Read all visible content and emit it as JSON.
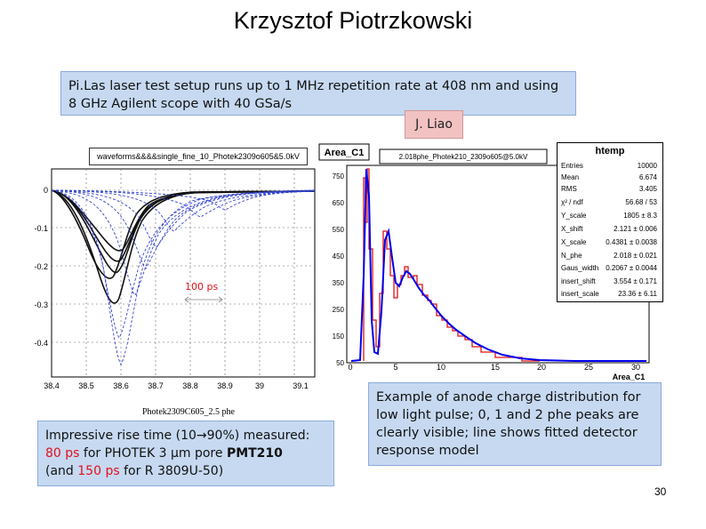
{
  "title": "Krzysztof Piotrzkowski",
  "top_callout": {
    "line1": "Pi.Las laser test setup runs up to 1 MHz repetition rate at 408 nm and using",
    "line2": "8 GHz Agilent scope with 40 GSa/s"
  },
  "author": "J. Liao",
  "scope": {
    "file_label": "waveforms&&&&single_fine_10_Photek2309o605&5.0kV",
    "caption": "Photek2309C605_2.5 phe",
    "pulse_label": "100 ps",
    "y_ticks": [
      "0",
      "-0.1",
      "-0.2",
      "-0.3",
      "-0.4"
    ],
    "x_ticks": [
      "38.4",
      "38.5",
      "38.6",
      "38.7",
      "38.8",
      "38.9",
      "39",
      "39.1"
    ]
  },
  "histogram": {
    "title": "Area_C1",
    "file_label": "2.018phe_Photek210_2309o605@5.0kV",
    "y_ticks": [
      "750",
      "650",
      "550",
      "450",
      "350",
      "250",
      "150",
      "50"
    ],
    "x_ticks": [
      "0",
      "5",
      "10",
      "15",
      "20",
      "25",
      "30"
    ],
    "x_axis_label": "Area_C1"
  },
  "stats": {
    "title": "htemp",
    "rows": [
      {
        "key": "Entries",
        "value": "10000"
      },
      {
        "key": "Mean",
        "value": "6.674"
      },
      {
        "key": "RMS",
        "value": "3.405"
      },
      {
        "key": "χ² / ndf",
        "value": "56.68 / 53"
      },
      {
        "key": "Y_scale",
        "value": "1805 ± 8.3"
      },
      {
        "key": "X_shift",
        "value": "2.121 ± 0.006"
      },
      {
        "key": "X_scale",
        "value": "0.4381 ± 0.0038"
      },
      {
        "key": "N_phe",
        "value": "2.018 ± 0.021"
      },
      {
        "key": "Gaus_width",
        "value": "0.2067 ± 0.0044"
      },
      {
        "key": "insert_shift",
        "value": "3.554 ± 0.171"
      },
      {
        "key": "insert_scale",
        "value": "23.36 ± 6.11"
      }
    ]
  },
  "rise_callout": {
    "line1": "Impressive rise time (10→90%) measured:",
    "line2_red": "80 ps",
    "line2_mid": " for PHOTEK 3 μm pore ",
    "line2_bold": "PMT210",
    "line3_pre": "(and ",
    "line3_red": "150 ps",
    "line3_post": " for R 3809U-50)"
  },
  "example_callout": {
    "line1": "Example of anode charge distribution for",
    "line2": "low light pulse; 0, 1 and 2 phe peaks are",
    "line3": "clearly visible;  line shows fitted detector",
    "line4": "response model"
  },
  "page_number": "30",
  "colors": {
    "callout_bg": "#c6d9f1",
    "author_bg": "#f2c2c2",
    "accent_red": "#e0101a",
    "hist_blue": "#0000ee"
  }
}
